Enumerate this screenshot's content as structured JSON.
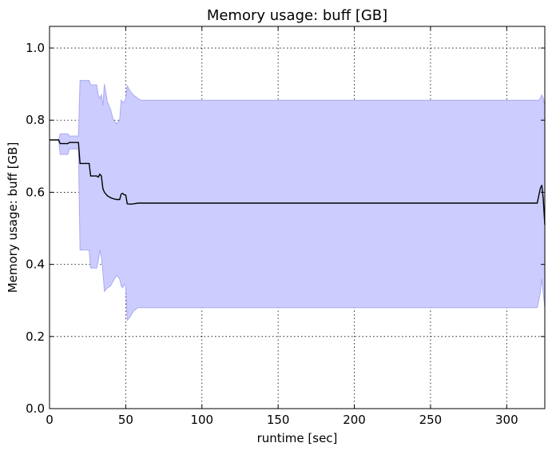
{
  "chart_data": {
    "type": "line",
    "title": "Memory usage: buff [GB]",
    "xlabel": "runtime [sec]",
    "ylabel": "Memory usage: buff [GB]",
    "xlim": [
      0,
      325
    ],
    "ylim": [
      0,
      1.06
    ],
    "xticks": [
      0,
      50,
      100,
      150,
      200,
      250,
      300
    ],
    "yticks": [
      0.0,
      0.2,
      0.4,
      0.6,
      0.8,
      1.0
    ],
    "xtick_labels": [
      "0",
      "50",
      "100",
      "150",
      "200",
      "250",
      "300"
    ],
    "ytick_labels": [
      "0.0",
      "0.2",
      "0.4",
      "0.6",
      "0.8",
      "1.0"
    ],
    "grid": true,
    "line_color": "#000000",
    "band_color": "#ccccff",
    "band_edge_color": "#aaaaf0",
    "mean_line": {
      "x": [
        0,
        6,
        7,
        12,
        13,
        19,
        20,
        26,
        27,
        31,
        32,
        33,
        34,
        35,
        36,
        38,
        40,
        42,
        44,
        46,
        47,
        48,
        49,
        50,
        51,
        53,
        55,
        58,
        60,
        100,
        200,
        320,
        321,
        322,
        323,
        324,
        325
      ],
      "y": [
        0.745,
        0.745,
        0.735,
        0.735,
        0.738,
        0.738,
        0.68,
        0.68,
        0.645,
        0.645,
        0.642,
        0.65,
        0.645,
        0.61,
        0.6,
        0.59,
        0.585,
        0.582,
        0.58,
        0.58,
        0.595,
        0.597,
        0.593,
        0.592,
        0.568,
        0.567,
        0.568,
        0.57,
        0.57,
        0.57,
        0.57,
        0.57,
        0.59,
        0.61,
        0.62,
        0.58,
        0.51
      ]
    },
    "band_upper": {
      "x": [
        0,
        6,
        7,
        12,
        13,
        19,
        20,
        26,
        27,
        31,
        32,
        33,
        34,
        35,
        36,
        38,
        40,
        42,
        44,
        46,
        47,
        48,
        49,
        50,
        51,
        53,
        55,
        58,
        60,
        100,
        200,
        320,
        321,
        322,
        323,
        324,
        325
      ],
      "y": [
        0.745,
        0.745,
        0.762,
        0.762,
        0.756,
        0.756,
        0.91,
        0.91,
        0.898,
        0.898,
        0.87,
        0.86,
        0.87,
        0.84,
        0.9,
        0.85,
        0.83,
        0.8,
        0.79,
        0.8,
        0.855,
        0.85,
        0.85,
        0.86,
        0.895,
        0.88,
        0.87,
        0.86,
        0.855,
        0.855,
        0.855,
        0.855,
        0.855,
        0.86,
        0.87,
        0.86,
        0.84
      ]
    },
    "band_lower": {
      "x": [
        0,
        6,
        7,
        12,
        13,
        19,
        20,
        26,
        27,
        31,
        32,
        33,
        34,
        35,
        36,
        38,
        40,
        42,
        44,
        46,
        47,
        48,
        49,
        50,
        51,
        53,
        55,
        58,
        60,
        100,
        200,
        320,
        321,
        322,
        323,
        324,
        325
      ],
      "y": [
        0.745,
        0.745,
        0.705,
        0.705,
        0.72,
        0.72,
        0.44,
        0.44,
        0.39,
        0.39,
        0.41,
        0.44,
        0.42,
        0.38,
        0.325,
        0.335,
        0.34,
        0.355,
        0.37,
        0.36,
        0.34,
        0.335,
        0.345,
        0.34,
        0.245,
        0.255,
        0.27,
        0.28,
        0.28,
        0.28,
        0.28,
        0.28,
        0.3,
        0.32,
        0.36,
        0.32,
        0.28
      ]
    }
  }
}
